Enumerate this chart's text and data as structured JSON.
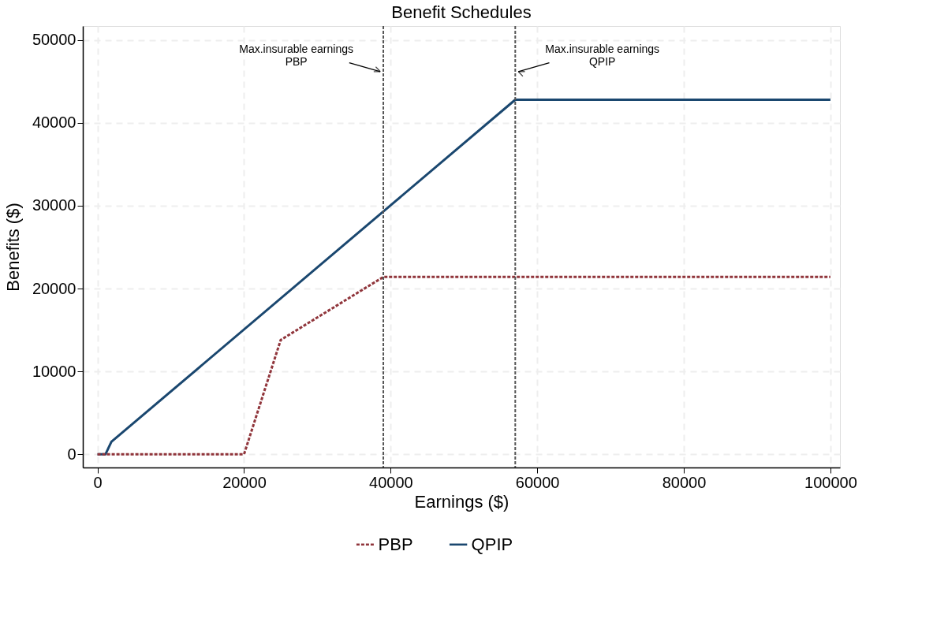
{
  "chart_data": {
    "type": "line",
    "title": "Benefit Schedules",
    "xlabel": "Earnings ($)",
    "ylabel": "Benefits ($)",
    "xlim": [
      -2000,
      101300
    ],
    "ylim": [
      -1600,
      51700
    ],
    "xticks": [
      0,
      20000,
      40000,
      60000,
      80000,
      100000
    ],
    "yticks": [
      0,
      10000,
      20000,
      30000,
      40000,
      50000
    ],
    "grid": true,
    "legend": "bottom",
    "series": [
      {
        "name": "PBP",
        "color": "#90353b",
        "line_style": "dashed",
        "x": [
          0,
          20000,
          25000,
          39000,
          100000
        ],
        "values": [
          0,
          0,
          13800,
          21400,
          21400
        ]
      },
      {
        "name": "QPIP",
        "color": "#1a476f",
        "line_style": "solid",
        "x": [
          0,
          1100,
          1900,
          57000,
          100000
        ],
        "values": [
          0,
          0,
          1500,
          42800,
          42800
        ]
      }
    ],
    "ref_lines": [
      {
        "axis": "x",
        "value": 39000,
        "color": "#555555",
        "line_style": "dashed"
      },
      {
        "axis": "x",
        "value": 57000,
        "color": "#555555",
        "line_style": "dashed"
      }
    ],
    "annotations": [
      {
        "text": "Max.insurable earnings\nPBP",
        "x": 39000,
        "y": 46200
      },
      {
        "text": "Max.insurable earnings\nQPIP",
        "x": 57000,
        "y": 46200
      }
    ]
  }
}
